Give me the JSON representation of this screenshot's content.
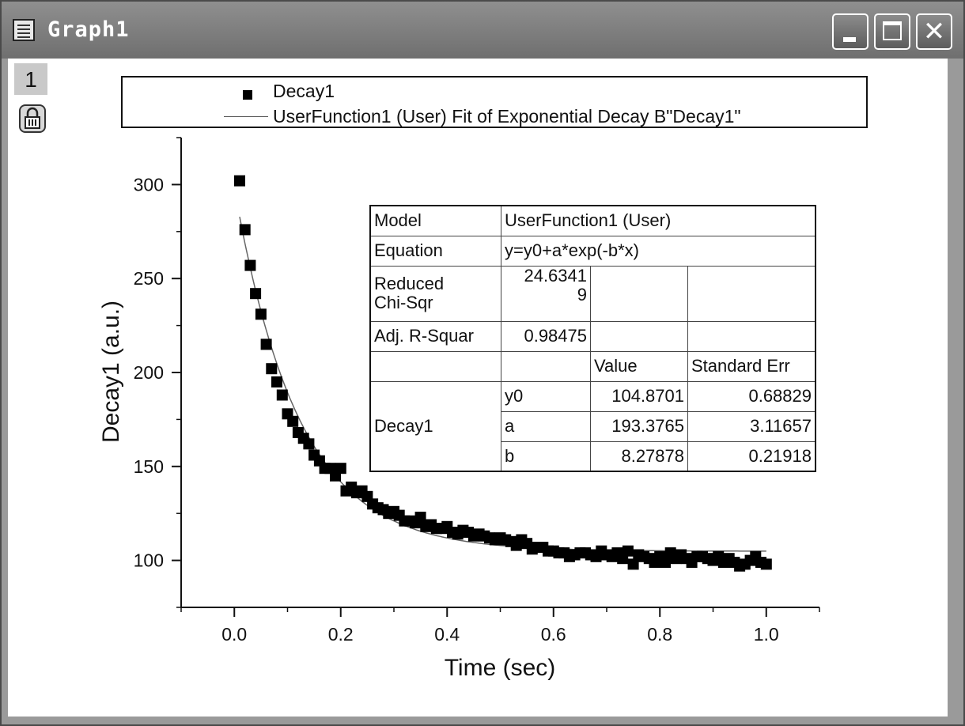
{
  "window": {
    "title": "Graph1",
    "layer_number": "1"
  },
  "legend": {
    "entries": [
      "Decay1",
      "UserFunction1 (User) Fit of Exponential Decay B\"Decay1\""
    ]
  },
  "fit_table": {
    "model_label": "Model",
    "model_value": "UserFunction1 (User)",
    "equation_label": "Equation",
    "equation_value": "y=y0+a*exp(-b*x)",
    "chi_label_1": "Reduced",
    "chi_label_2": "Chi-Sqr",
    "chi_value_1": "24.6341",
    "chi_value_2": "9",
    "r2_label": "Adj. R-Squar",
    "r2_value": "0.98475",
    "col_value": "Value",
    "col_err": "Standard Err",
    "group": "Decay1",
    "rows": [
      {
        "param": "y0",
        "value": "104.8701",
        "err": "0.68829"
      },
      {
        "param": "a",
        "value": "193.3765",
        "err": "3.11657"
      },
      {
        "param": "b",
        "value": "8.27878",
        "err": "0.21918"
      }
    ]
  },
  "chart_data": {
    "type": "scatter",
    "xlabel": "Time (sec)",
    "ylabel": "Decay1 (a.u.)",
    "xlim": [
      -0.1,
      1.1
    ],
    "ylim": [
      75,
      325
    ],
    "x_ticks": [
      "0.0",
      "0.2",
      "0.4",
      "0.6",
      "0.8",
      "1.0"
    ],
    "y_ticks": [
      "100",
      "150",
      "200",
      "250",
      "300"
    ],
    "series": [
      {
        "name": "Decay1",
        "x": [
          0.01,
          0.02,
          0.03,
          0.04,
          0.05,
          0.06,
          0.07,
          0.08,
          0.09,
          0.1,
          0.11,
          0.12,
          0.13,
          0.14,
          0.15,
          0.16,
          0.17,
          0.18,
          0.19,
          0.2,
          0.21,
          0.22,
          0.23,
          0.24,
          0.25,
          0.26,
          0.27,
          0.28,
          0.29,
          0.3,
          0.31,
          0.32,
          0.33,
          0.34,
          0.35,
          0.36,
          0.37,
          0.38,
          0.39,
          0.4,
          0.41,
          0.42,
          0.43,
          0.44,
          0.45,
          0.46,
          0.47,
          0.48,
          0.49,
          0.5,
          0.51,
          0.52,
          0.53,
          0.54,
          0.55,
          0.56,
          0.57,
          0.58,
          0.59,
          0.6,
          0.61,
          0.62,
          0.63,
          0.64,
          0.65,
          0.66,
          0.67,
          0.68,
          0.69,
          0.7,
          0.71,
          0.72,
          0.73,
          0.74,
          0.75,
          0.76,
          0.77,
          0.78,
          0.79,
          0.8,
          0.81,
          0.82,
          0.83,
          0.84,
          0.85,
          0.86,
          0.87,
          0.88,
          0.89,
          0.9,
          0.91,
          0.92,
          0.93,
          0.94,
          0.95,
          0.96,
          0.97,
          0.98,
          0.99,
          1.0
        ],
        "y": [
          302,
          276,
          257,
          242,
          231,
          215,
          202,
          195,
          188,
          178,
          174,
          168,
          165,
          162,
          156,
          153,
          149,
          149,
          145,
          149,
          137,
          139,
          136,
          137,
          134,
          130,
          128,
          127,
          125,
          126,
          124,
          121,
          121,
          120,
          123,
          118,
          119,
          117,
          117,
          118,
          115,
          114,
          116,
          115,
          113,
          114,
          113,
          112,
          111,
          112,
          111,
          110,
          108,
          111,
          109,
          106,
          107,
          107,
          105,
          105,
          104,
          104,
          102,
          103,
          104,
          104,
          103,
          102,
          105,
          103,
          102,
          104,
          101,
          105,
          98,
          103,
          102,
          101,
          99,
          102,
          99,
          104,
          101,
          103,
          101,
          99,
          102,
          102,
          101,
          100,
          102,
          99,
          101,
          99,
          97,
          98,
          100,
          102,
          99,
          98
        ]
      },
      {
        "name": "UserFunction1 (User) Fit of Exponential Decay B\"Decay1\"",
        "fit": "y0+a*exp(-b*x)",
        "params": {
          "y0": 104.8701,
          "a": 193.3765,
          "b": 8.27878
        },
        "x_range": [
          0.01,
          1.0
        ]
      }
    ]
  }
}
